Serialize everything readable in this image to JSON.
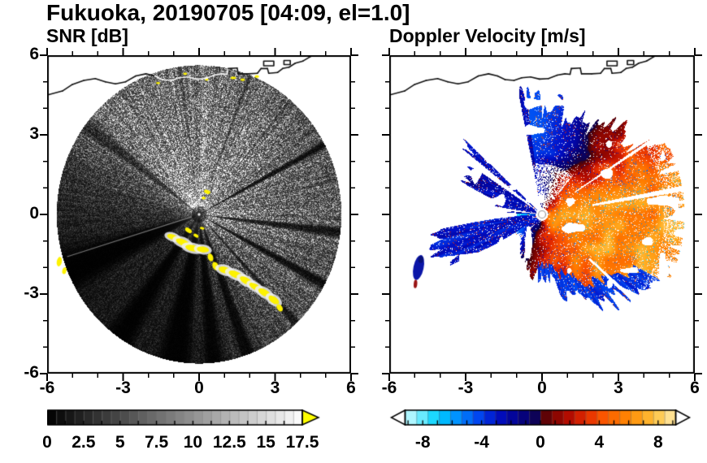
{
  "title": "Fukuoka, 20190705 [04:09, el=1.0]",
  "panels": {
    "snr": {
      "title": "SNR [dB]",
      "xtick_labels": [
        "-6",
        "-3",
        "0",
        "3",
        "6"
      ],
      "ytick_labels": [
        "6",
        "3",
        "0",
        "-3",
        "-6"
      ],
      "cbar_labels": [
        "0",
        "2.5",
        "5",
        "7.5",
        "10",
        "12.5",
        "15",
        "17.5"
      ]
    },
    "vel": {
      "title": "Doppler Velocity [m/s]",
      "xtick_labels": [
        "-6",
        "-3",
        "0",
        "3",
        "6"
      ],
      "cbar_labels": [
        "-8",
        "-4",
        "0",
        "4",
        "8"
      ]
    }
  },
  "colors": {
    "snr_over_range": "#ffff00",
    "frame": "#000000",
    "background": "#ffffff"
  },
  "chart_data": [
    {
      "type": "heatmap",
      "panel": "left",
      "title": "SNR [dB]",
      "xlabel": "",
      "ylabel": "",
      "xlim": [
        -6,
        6
      ],
      "ylim": [
        -6,
        6
      ],
      "xticks": [
        -6,
        -3,
        0,
        3,
        6
      ],
      "yticks": [
        -6,
        -3,
        0,
        3,
        6
      ],
      "grid": false,
      "scan_radius": 5.6,
      "colorbar": {
        "orientation": "horizontal",
        "range": [
          0,
          17.5
        ],
        "ticks": [
          0,
          2.5,
          5,
          7.5,
          10,
          12.5,
          15,
          17.5
        ],
        "colormap": "black-to-white grayscale",
        "over_arrow_color": "#ffff00"
      },
      "features": [
        "circular PPI radar scan centered at (0,0)",
        "bright speckled echo fan over the northern half of the scan",
        "dark shadow sectors radiating toward SW, SSW and S",
        "yellow over-range ground clutter chain from about (-1,-1) to (3.2,-3.5)",
        "small yellow clutter patches near center and at (-5.5,-1.8)",
        "white coastline overlay across the top of the scan"
      ]
    },
    {
      "type": "heatmap",
      "panel": "right",
      "title": "Doppler Velocity [m/s]",
      "xlabel": "",
      "ylabel": "",
      "xlim": [
        -6,
        6
      ],
      "ylim": [
        -6,
        6
      ],
      "xticks": [
        -6,
        -3,
        0,
        3,
        6
      ],
      "yticks": [
        -6,
        -3,
        0,
        3,
        6
      ],
      "grid": false,
      "scan_radius": 5.6,
      "colorbar": {
        "orientation": "horizontal",
        "range": [
          -8,
          8
        ],
        "ticks": [
          -8,
          -4,
          0,
          4,
          8
        ],
        "colormap": "diverging cyan-blue-navy / dark red-red-orange-pale yellow",
        "under_arrow": true,
        "over_arrow": true
      },
      "features": [
        "positive (orange/red) velocities over eastern and central sectors",
        "negative (navy/blue) band across the north",
        "solid negative wedge toward WSW reaching r≈4.3",
        "streaky negative fans toward NW",
        "negative fringe along the SE data edge",
        "detached negative echo near (-4.9,-2.1)",
        "black coastline overlay across the top, white background where no echo"
      ]
    }
  ]
}
